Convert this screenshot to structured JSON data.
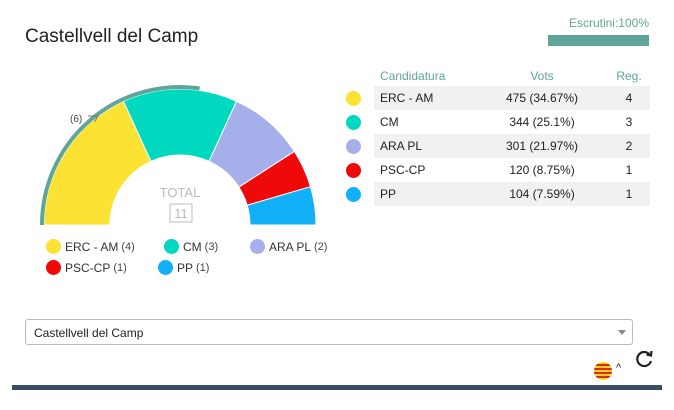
{
  "header": {
    "title": "Castellvell del Camp",
    "escrutini_label": "Escrutini:100%",
    "escrutini_progress": 1.0,
    "accent_color": "#5fa59a"
  },
  "chart": {
    "total_label": "TOTAL",
    "total_seats": "11",
    "majority_label": "(6)"
  },
  "chart_data": {
    "type": "pie",
    "categories": [
      "ERC - AM",
      "CM",
      "ARA PL",
      "PSC-CP",
      "PP"
    ],
    "values": [
      4,
      3,
      2,
      1,
      1
    ],
    "colors": [
      "#fce232",
      "#00d9c0",
      "#a5b0ea",
      "#ef0a0a",
      "#12b0f7"
    ],
    "total": 11,
    "majority": 6
  },
  "legend": [
    {
      "label": "ERC - AM",
      "count": "(4)",
      "color": "#fce232"
    },
    {
      "label": "CM",
      "count": "(3)",
      "color": "#00d9c0"
    },
    {
      "label": "ARA PL",
      "count": "(2)",
      "color": "#a5b0ea"
    },
    {
      "label": "PSC-CP",
      "count": "(1)",
      "color": "#ef0a0a"
    },
    {
      "label": "PP",
      "count": "(1)",
      "color": "#12b0f7"
    }
  ],
  "table": {
    "headers": {
      "candidatura": "Candidatura",
      "vots": "Vots",
      "reg": "Reg."
    },
    "rows": [
      {
        "name": "ERC - AM",
        "vots": "475 (34.67%)",
        "reg": "4",
        "color": "#fce232"
      },
      {
        "name": "CM",
        "vots": "344 (25.1%)",
        "reg": "3",
        "color": "#00d9c0"
      },
      {
        "name": "ARA PL",
        "vots": "301 (21.97%)",
        "reg": "2",
        "color": "#a5b0ea"
      },
      {
        "name": "PSC-CP",
        "vots": "120 (8.75%)",
        "reg": "1",
        "color": "#ef0a0a"
      },
      {
        "name": "PP",
        "vots": "104 (7.59%)",
        "reg": "1",
        "color": "#12b0f7"
      }
    ]
  },
  "municipality_select": {
    "value": "Castellvell del Camp"
  },
  "footer": {
    "chevron": "^",
    "language_icon": "catalan-flag-icon",
    "refresh_icon": "refresh-icon"
  }
}
